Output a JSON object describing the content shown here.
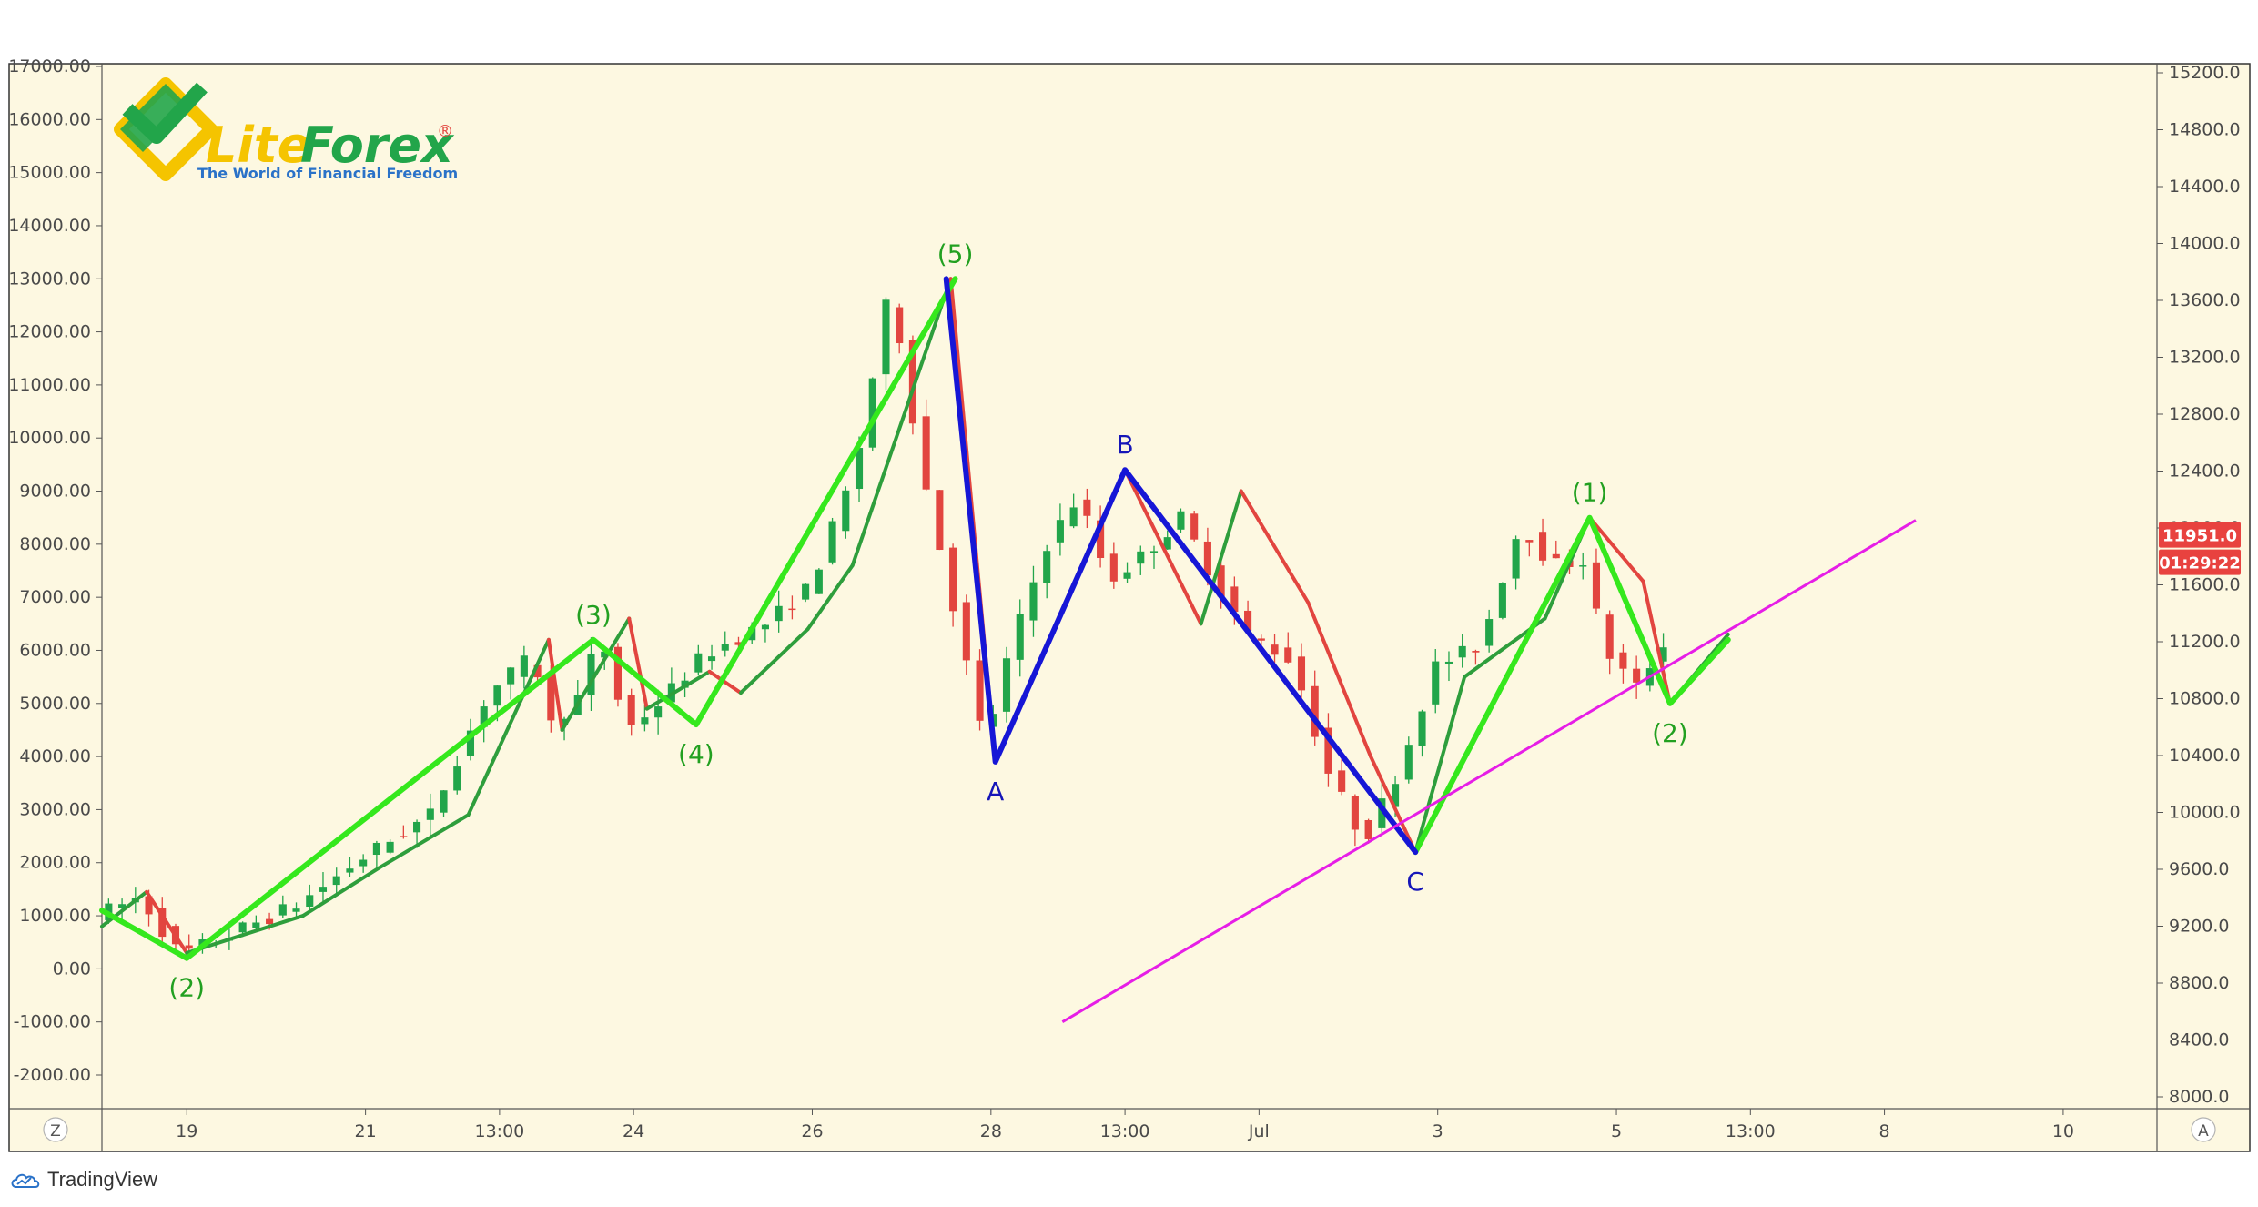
{
  "logo": {
    "brand_lite": "Lite",
    "brand_forex": "Forex",
    "registered": "®",
    "tagline": "The World of Financial Freedom"
  },
  "toolbar": {
    "left_button": "Z",
    "right_button": "A"
  },
  "footer": {
    "brand": "TradingView",
    "icon": "tradingview-cloud-icon"
  },
  "chart_data": {
    "type": "candlestick",
    "colors": {
      "background": "#fdf8e1",
      "up": "#22a54a",
      "down": "#e2453f",
      "wave_impulse": "#35e81d",
      "wave_sub": "#2e9e3c",
      "wave_corrective": "#1616d6",
      "trendline": "#e61ee6",
      "price_badge": "#e8423f"
    },
    "left_axis": {
      "min": -2000,
      "max": 17000,
      "ticks": [
        "17000.00",
        "16000.00",
        "15000.00",
        "14000.00",
        "13000.00",
        "12000.00",
        "11000.00",
        "10000.00",
        "9000.00",
        "8000.00",
        "7000.00",
        "6000.00",
        "5000.00",
        "4000.00",
        "3000.00",
        "2000.00",
        "1000.00",
        "0.00",
        "-1000.00",
        "-2000.00"
      ]
    },
    "right_axis": {
      "min": 8000,
      "max": 15200,
      "ticks": [
        "15200.0",
        "14800.0",
        "14400.0",
        "14000.0",
        "13600.0",
        "13200.0",
        "12800.0",
        "12400.0",
        "12000.0",
        "11600.0",
        "11200.0",
        "10800.0",
        "10400.0",
        "10000.0",
        "9600.0",
        "9200.0",
        "8800.0",
        "8400.0",
        "8000.0"
      ],
      "price_label": "11951.0",
      "countdown_label": "01:29:22",
      "price_value": 11951.0
    },
    "x_axis": {
      "ticks": [
        {
          "label": "19",
          "i": 19
        },
        {
          "label": "21",
          "i": 59
        },
        {
          "label": "13:00",
          "i": 89
        },
        {
          "label": "24",
          "i": 119
        },
        {
          "label": "26",
          "i": 159
        },
        {
          "label": "28",
          "i": 199
        },
        {
          "label": "13:00",
          "i": 229
        },
        {
          "label": "Jul",
          "i": 259
        },
        {
          "label": "3",
          "i": 299
        },
        {
          "label": "5",
          "i": 339
        },
        {
          "label": "13:00",
          "i": 369
        },
        {
          "label": "8",
          "i": 399
        },
        {
          "label": "10",
          "i": 439
        }
      ]
    },
    "price_path": [
      {
        "i": 0,
        "v": 1000
      },
      {
        "i": 10,
        "v": 1350
      },
      {
        "i": 19,
        "v": 250
      },
      {
        "i": 30,
        "v": 650
      },
      {
        "i": 45,
        "v": 1200
      },
      {
        "i": 60,
        "v": 2100
      },
      {
        "i": 75,
        "v": 2900
      },
      {
        "i": 88,
        "v": 5200
      },
      {
        "i": 98,
        "v": 5900
      },
      {
        "i": 102,
        "v": 4600
      },
      {
        "i": 108,
        "v": 5100
      },
      {
        "i": 113,
        "v": 6300
      },
      {
        "i": 119,
        "v": 4500
      },
      {
        "i": 126,
        "v": 5000
      },
      {
        "i": 136,
        "v": 5900
      },
      {
        "i": 150,
        "v": 6500
      },
      {
        "i": 160,
        "v": 7200
      },
      {
        "i": 170,
        "v": 9400
      },
      {
        "i": 178,
        "v": 12900
      },
      {
        "i": 185,
        "v": 9400
      },
      {
        "i": 193,
        "v": 6500
      },
      {
        "i": 199,
        "v": 4200
      },
      {
        "i": 205,
        "v": 6100
      },
      {
        "i": 213,
        "v": 8000
      },
      {
        "i": 220,
        "v": 8900
      },
      {
        "i": 227,
        "v": 7300
      },
      {
        "i": 236,
        "v": 7900
      },
      {
        "i": 243,
        "v": 8500
      },
      {
        "i": 250,
        "v": 7400
      },
      {
        "i": 258,
        "v": 6300
      },
      {
        "i": 268,
        "v": 5800
      },
      {
        "i": 276,
        "v": 3700
      },
      {
        "i": 284,
        "v": 2400
      },
      {
        "i": 292,
        "v": 3800
      },
      {
        "i": 300,
        "v": 5700
      },
      {
        "i": 310,
        "v": 6100
      },
      {
        "i": 319,
        "v": 8400
      },
      {
        "i": 326,
        "v": 7600
      },
      {
        "i": 333,
        "v": 7700
      },
      {
        "i": 338,
        "v": 6000
      },
      {
        "i": 345,
        "v": 5300
      },
      {
        "i": 352,
        "v": 6300
      }
    ],
    "candle_spacing": 3,
    "waves_impulse": [
      {
        "label": "",
        "i": 0,
        "v": 1100
      },
      {
        "label": "(2)",
        "i": 19,
        "v": 200,
        "pos": "below"
      },
      {
        "label": "(3)",
        "i": 110,
        "v": 6200,
        "pos": "above"
      },
      {
        "label": "(4)",
        "i": 133,
        "v": 4600,
        "pos": "below"
      },
      {
        "label": "(5)",
        "i": 191,
        "v": 13000,
        "pos": "above"
      }
    ],
    "waves_impulse_2": [
      {
        "label": "",
        "i": 294,
        "v": 2200
      },
      {
        "label": "(1)",
        "i": 333,
        "v": 8500,
        "pos": "above"
      },
      {
        "label": "(2)",
        "i": 351,
        "v": 5000,
        "pos": "below"
      },
      {
        "label": "",
        "i": 364,
        "v": 6200
      }
    ],
    "waves_corrective": [
      {
        "label": "",
        "i": 189,
        "v": 13000
      },
      {
        "label": "A",
        "i": 200,
        "v": 3900,
        "pos": "below"
      },
      {
        "label": "B",
        "i": 229,
        "v": 9400,
        "pos": "above"
      },
      {
        "label": "C",
        "i": 294,
        "v": 2200,
        "pos": "below"
      }
    ],
    "subwaves": [
      {
        "i": 0,
        "v": 800
      },
      {
        "i": 10,
        "v": 1450
      },
      {
        "i": 19,
        "v": 300
      },
      {
        "i": 45,
        "v": 1000
      },
      {
        "i": 62,
        "v": 1900
      },
      {
        "i": 82,
        "v": 2900
      },
      {
        "i": 100,
        "v": 6200
      },
      {
        "i": 103,
        "v": 4500
      },
      {
        "i": 118,
        "v": 6600
      },
      {
        "i": 122,
        "v": 4900
      },
      {
        "i": 136,
        "v": 5600
      },
      {
        "i": 143,
        "v": 5200
      },
      {
        "i": 158,
        "v": 6400
      },
      {
        "i": 168,
        "v": 7600
      },
      {
        "i": 190,
        "v": 13000
      },
      {
        "i": 200,
        "v": 3900
      },
      {
        "i": 229,
        "v": 9400
      },
      {
        "i": 246,
        "v": 6500
      },
      {
        "i": 255,
        "v": 9000
      },
      {
        "i": 270,
        "v": 6900
      },
      {
        "i": 284,
        "v": 4000
      },
      {
        "i": 294,
        "v": 2200
      },
      {
        "i": 305,
        "v": 5500
      },
      {
        "i": 323,
        "v": 6600
      },
      {
        "i": 333,
        "v": 8500
      },
      {
        "i": 345,
        "v": 7300
      },
      {
        "i": 351,
        "v": 5000
      },
      {
        "i": 364,
        "v": 6300
      }
    ],
    "trendline": {
      "from": {
        "i": 215,
        "v": -1000
      },
      "to": {
        "i": 406,
        "v": 8450
      }
    },
    "grid": false
  }
}
